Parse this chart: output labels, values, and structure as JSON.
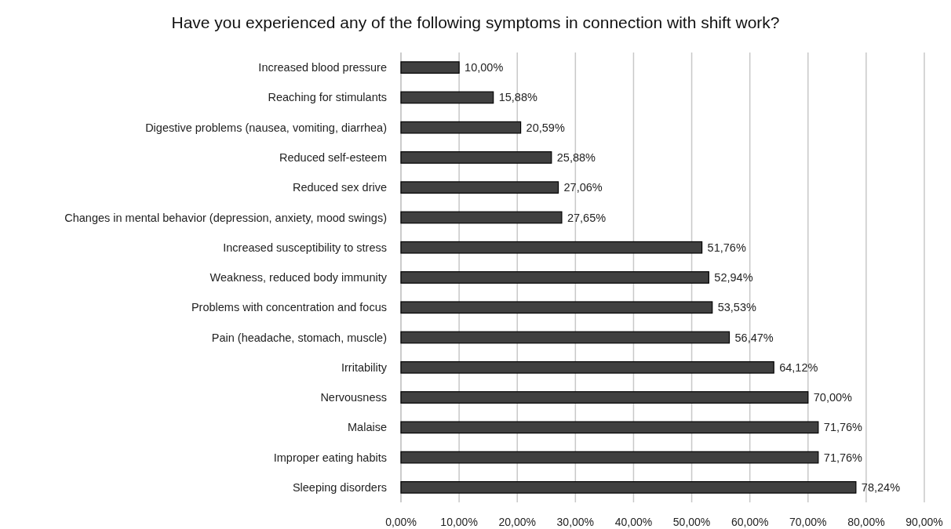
{
  "chart_data": {
    "type": "bar",
    "orientation": "horizontal",
    "title": "Have you experienced any of the following symptoms in connection with shift work?",
    "categories": [
      "Increased blood pressure",
      "Reaching for stimulants",
      "Digestive problems (nausea, vomiting, diarrhea)",
      "Reduced self-esteem",
      "Reduced sex drive",
      "Changes in mental behavior (depression, anxiety, mood swings)",
      "Increased susceptibility to stress",
      "Weakness, reduced body immunity",
      "Problems with concentration and focus",
      "Pain (headache, stomach, muscle)",
      "Irritability",
      "Nervousness",
      "Malaise",
      "Improper eating habits",
      "Sleeping disorders"
    ],
    "values": [
      10.0,
      15.88,
      20.59,
      25.88,
      27.06,
      27.65,
      51.76,
      52.94,
      53.53,
      56.47,
      64.12,
      70.0,
      71.76,
      71.76,
      78.24
    ],
    "value_labels": [
      "10,00%",
      "15,88%",
      "20,59%",
      "25,88%",
      "27,06%",
      "27,65%",
      "51,76%",
      "52,94%",
      "53,53%",
      "56,47%",
      "64,12%",
      "70,00%",
      "71,76%",
      "71,76%",
      "78,24%"
    ],
    "color": "#404040",
    "xlim": [
      0,
      90
    ],
    "xticks": [
      {
        "value": 0,
        "label": "0,00%"
      },
      {
        "value": 10,
        "label": "10,00%"
      },
      {
        "value": 20,
        "label": "20,00%"
      },
      {
        "value": 30,
        "label": "30,00%"
      },
      {
        "value": 40,
        "label": "40,00%"
      },
      {
        "value": 50,
        "label": "50,00%"
      },
      {
        "value": 60,
        "label": "60,00%"
      },
      {
        "value": 70,
        "label": "70,00%"
      },
      {
        "value": 80,
        "label": "80,00%"
      },
      {
        "value": 90,
        "label": "90,00%"
      }
    ],
    "grid": "x"
  }
}
